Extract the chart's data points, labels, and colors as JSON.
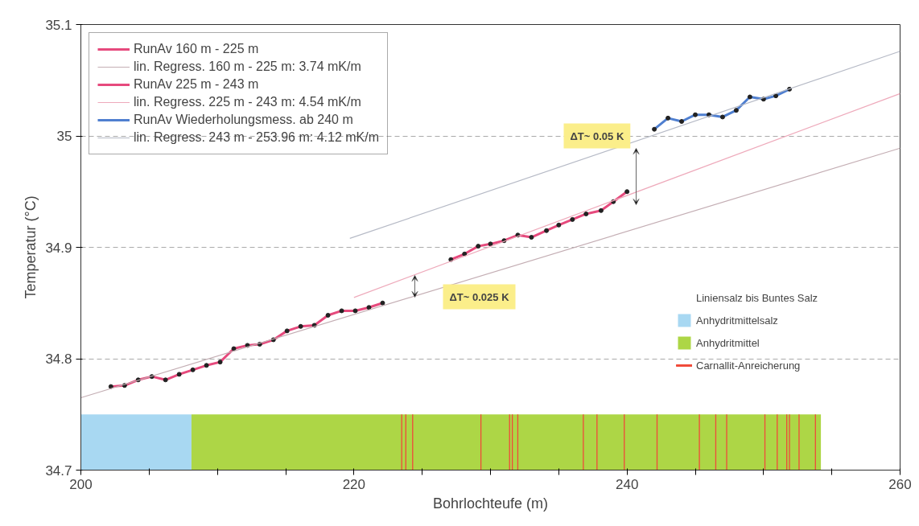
{
  "chart_data": {
    "type": "line",
    "xlabel": "Bohrlochteufe (m)",
    "ylabel": "Temperatur (°C)",
    "xlim": [
      200,
      260
    ],
    "xticks": [
      200,
      {
        "value": 205,
        "label": null
      },
      {
        "value": 210,
        "label": null
      },
      {
        "value": 215,
        "label": null
      },
      220,
      {
        "value": 225,
        "label": null
      },
      {
        "value": 230,
        "label": null
      },
      {
        "value": 235,
        "label": null
      },
      240,
      {
        "value": 245,
        "label": null
      },
      {
        "value": 250,
        "label": null
      },
      {
        "value": 255,
        "label": null
      },
      260
    ],
    "ylim": [
      34.7,
      35.1
    ],
    "yticks": [
      34.7,
      34.8,
      34.9,
      35,
      35.1
    ],
    "grid": "y",
    "legend": "top left",
    "series": [
      {
        "name": "RunAv 160 m - 225 m",
        "color": "#e64a7d",
        "marker": "circle",
        "x": [
          202.2,
          203.2,
          204.2,
          205.2,
          206.2,
          207.2,
          208.2,
          209.2,
          210.2,
          211.2,
          212.2,
          213.1,
          214.1,
          215.1,
          216.1,
          217.1,
          218.1,
          219.1,
          220.1,
          221.1,
          222.1
        ],
        "values": [
          34.775,
          34.776,
          34.781,
          34.784,
          34.781,
          34.786,
          34.79,
          34.794,
          34.797,
          34.809,
          34.812,
          34.813,
          34.817,
          34.825,
          34.829,
          34.83,
          34.839,
          34.843,
          34.843,
          34.846,
          34.85
        ]
      },
      {
        "name": "lin. Regress. 160 m - 225 m: 3.74 mK/m",
        "color": "#c4aeb4",
        "marker": "none",
        "x": [
          200,
          260
        ],
        "values": [
          34.765,
          34.989
        ]
      },
      {
        "name": "RunAv 225 m - 243 m",
        "color": "#e64a7d",
        "marker": "circle",
        "x": [
          227.1,
          228.1,
          229.1,
          230.0,
          231.0,
          232.0,
          233.0,
          234.1,
          235.0,
          236.0,
          237.0,
          238.1,
          239.0,
          240.0
        ],
        "values": [
          34.889,
          34.894,
          34.901,
          34.903,
          34.906,
          34.911,
          34.909,
          34.915,
          34.92,
          34.925,
          34.93,
          34.933,
          34.941,
          34.95
        ]
      },
      {
        "name": "lin. Regress. 225 m - 243 m: 4.54 mK/m",
        "color": "#eeaabb",
        "marker": "none",
        "x": [
          220.0,
          260
        ],
        "values": [
          34.855,
          35.038
        ]
      },
      {
        "name": "RunAv Wiederholungsmess. ab 240 m",
        "color": "#4f7fd0",
        "marker": "circle",
        "x": [
          242.0,
          243.0,
          244.0,
          245.0,
          246.0,
          247.0,
          248.0,
          249.0,
          250.0,
          250.9,
          251.9
        ],
        "values": [
          35.006,
          35.016,
          35.013,
          35.019,
          35.019,
          35.017,
          35.023,
          35.035,
          35.033,
          35.036,
          35.042
        ]
      },
      {
        "name": "lin. Regress. 243 m - 253.96 m: 4.12 mK/m",
        "color": "#b6bac6",
        "marker": "none",
        "x": [
          219.7,
          260
        ],
        "values": [
          34.908,
          35.076
        ]
      }
    ],
    "bands": [
      {
        "axis": "x",
        "from": 200,
        "to": 208.1,
        "label": "Anhydritmittelsalz",
        "color": "#a8d8f2"
      },
      {
        "axis": "x",
        "from": 208.1,
        "to": 254.2,
        "label": "Anhydritmittel",
        "color": "#add646"
      }
    ],
    "ref_lines": [
      {
        "axis": "x",
        "value": 223.5,
        "label": "Carnallit-Anreicherung",
        "color": "#f04a3a"
      },
      {
        "axis": "x",
        "value": 223.8,
        "color": "#f04a3a"
      },
      {
        "axis": "x",
        "value": 224.3,
        "color": "#f04a3a"
      },
      {
        "axis": "x",
        "value": 229.3,
        "color": "#f04a3a"
      },
      {
        "axis": "x",
        "value": 231.4,
        "color": "#f04a3a"
      },
      {
        "axis": "x",
        "value": 231.6,
        "color": "#f04a3a"
      },
      {
        "axis": "x",
        "value": 232.0,
        "color": "#f04a3a"
      },
      {
        "axis": "x",
        "value": 236.8,
        "color": "#f04a3a"
      },
      {
        "axis": "x",
        "value": 237.8,
        "color": "#f04a3a"
      },
      {
        "axis": "x",
        "value": 239.8,
        "color": "#f04a3a"
      },
      {
        "axis": "x",
        "value": 242.2,
        "color": "#f04a3a"
      },
      {
        "axis": "x",
        "value": 245.3,
        "color": "#f04a3a"
      },
      {
        "axis": "x",
        "value": 246.5,
        "color": "#f04a3a"
      },
      {
        "axis": "x",
        "value": 247.3,
        "color": "#f04a3a"
      },
      {
        "axis": "x",
        "value": 250.1,
        "color": "#f04a3a"
      },
      {
        "axis": "x",
        "value": 251.0,
        "color": "#f04a3a"
      },
      {
        "axis": "x",
        "value": 251.7,
        "color": "#f04a3a"
      },
      {
        "axis": "x",
        "value": 251.9,
        "color": "#f04a3a"
      },
      {
        "axis": "x",
        "value": 252.6,
        "color": "#f04a3a"
      },
      {
        "axis": "x",
        "value": 253.8,
        "color": "#f04a3a"
      }
    ],
    "annotations": [
      "Liniensalz bis Buntes Salz",
      "ΔT~ 0.05 K",
      "ΔT~ 0.025 K"
    ]
  }
}
